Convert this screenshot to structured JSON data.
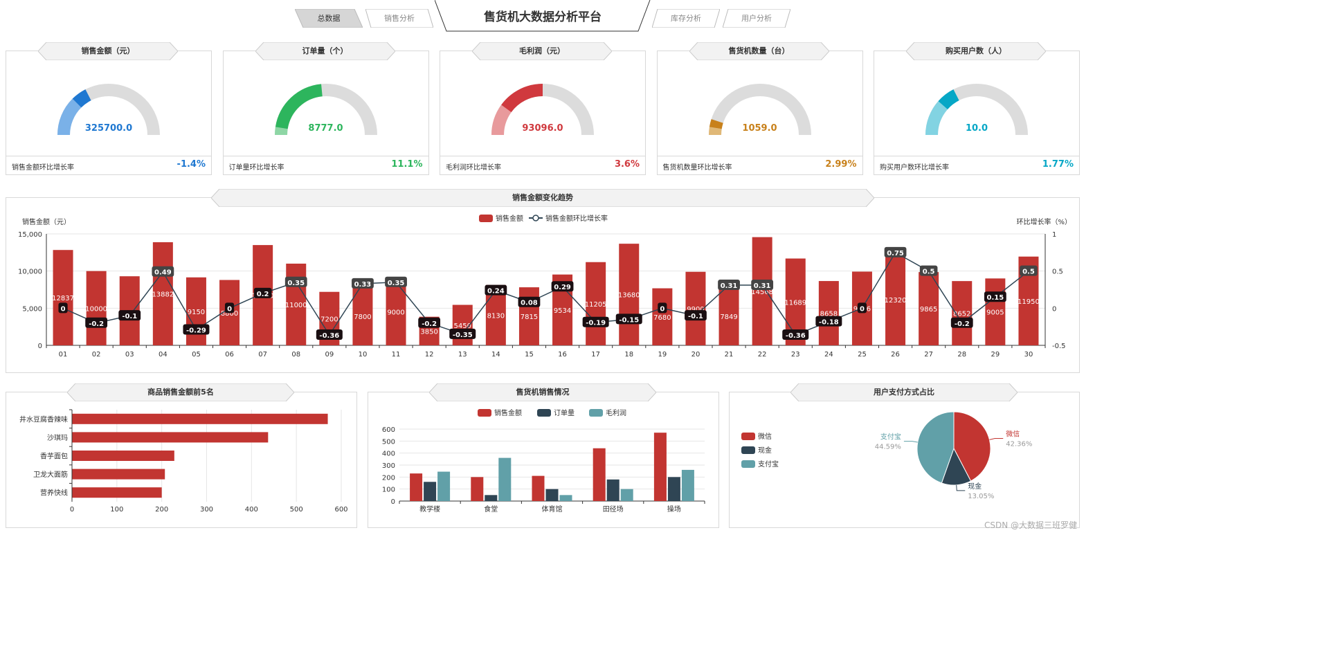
{
  "nav": {
    "tabs": [
      "总数据",
      "销售分析",
      "库存分析",
      "用户分析"
    ],
    "title": "售货机大数据分析平台"
  },
  "colors": {
    "red": "#c23531",
    "dark": "#2f4554",
    "teal": "#61a0a8"
  },
  "kpis": [
    {
      "title": "销售金额（元）",
      "value": "325700.0",
      "foot_label": "销售金额环比增长率",
      "growth": "-1.4%",
      "color": "#1f78d1",
      "light": "#7ab1e8",
      "fraction": 0.35,
      "light_fraction": 0.25
    },
    {
      "title": "订单量（个）",
      "value": "8777.0",
      "foot_label": "订单量环比增长率",
      "growth": "11.1%",
      "color": "#2db55d",
      "light": "#8ed6a5",
      "fraction": 0.47,
      "light_fraction": 0.05
    },
    {
      "title": "毛利润（元）",
      "value": "93096.0",
      "foot_label": "毛利润环比增长率",
      "growth": "3.6%",
      "color": "#d0393e",
      "light": "#e89a9c",
      "fraction": 0.5,
      "light_fraction": 0.2
    },
    {
      "title": "售货机数量（台）",
      "value": "1059.0",
      "foot_label": "售货机数量环比增长率",
      "growth": "2.99%",
      "color": "#c8811b",
      "light": "#e0b877",
      "fraction": 0.1,
      "light_fraction": 0.05
    },
    {
      "title": "购买用户数（人）",
      "value": "10.0",
      "foot_label": "购买用户数环比增长率",
      "growth": "1.77%",
      "color": "#06a7c6",
      "light": "#82d3e2",
      "fraction": 0.35,
      "light_fraction": 0.23
    }
  ],
  "footer_credit": "CSDN @大数据三班罗健",
  "chart_data": [
    {
      "type": "bar",
      "title": "销售金额变化趋势",
      "ylabel": "销售金额（元）",
      "y2label": "环比增长率（%）",
      "legend": [
        "销售金额",
        "销售金额环比增长率"
      ],
      "categories": [
        "01",
        "02",
        "03",
        "04",
        "05",
        "06",
        "07",
        "08",
        "09",
        "10",
        "11",
        "12",
        "13",
        "14",
        "15",
        "16",
        "17",
        "18",
        "19",
        "20",
        "21",
        "22",
        "23",
        "24",
        "25",
        "26",
        "27",
        "28",
        "29",
        "30"
      ],
      "series": [
        {
          "name": "销售金额",
          "type": "bar",
          "values": [
            12837,
            10000,
            9300,
            13882,
            9150,
            8800,
            13500,
            11000,
            7200,
            7800,
            9000,
            3850,
            5450,
            8130,
            7815,
            9534,
            11205,
            13680,
            7680,
            9900,
            7849,
            14568,
            11689,
            8658,
            9926,
            12320,
            9865,
            8652,
            9005,
            11950
          ],
          "labels": [
            "12837",
            "10000",
            "",
            "13882",
            "9150",
            "8800",
            "13500",
            "11000",
            "7200",
            "7800",
            "9000",
            "3850",
            "5450",
            "8130",
            "7815",
            "9534",
            "11205",
            "13680",
            "7680",
            "9900",
            "7849",
            "14568",
            "11689",
            "8658",
            "9926",
            "12320",
            "9865",
            "8652",
            "9005",
            "11950"
          ]
        },
        {
          "name": "销售金额环比增长率",
          "type": "line",
          "values": [
            0,
            -0.2,
            -0.1,
            0.49,
            -0.29,
            0,
            0.2,
            0.35,
            -0.36,
            0.33,
            0.35,
            -0.2,
            -0.35,
            0.24,
            0.08,
            0.29,
            -0.19,
            -0.15,
            0,
            -0.1,
            0.31,
            0.31,
            -0.36,
            -0.18,
            0,
            0.75,
            0.5,
            -0.2,
            0.15,
            0.5
          ],
          "labels": [
            "0",
            "-0.2",
            "-0.1",
            "0.49",
            "-0.29",
            "0",
            "0.2",
            "0.35",
            "-0.36",
            "0.33",
            "0.35",
            "-0.2",
            "-0.35",
            "0.24",
            "0.08",
            "0.29",
            "-0.19",
            "-0.15",
            "0",
            "-0.1",
            "0.31",
            "0.31",
            "-0.36",
            "-0.18",
            "0",
            "0.75",
            "0.5",
            "-0.2",
            "0.15",
            "0.5"
          ]
        }
      ],
      "ylim": [
        0,
        15000
      ],
      "yticks": [
        "0",
        "5,000",
        "10,000",
        "15,000"
      ],
      "y2lim": [
        -0.5,
        1
      ],
      "y2ticks": [
        "-0.5",
        "0",
        "0.5",
        "1"
      ]
    },
    {
      "type": "bar",
      "orientation": "horizontal",
      "title": "商品销售金额前5名",
      "categories": [
        "井水豆腐香辣味",
        "沙琪玛",
        "香芋面包",
        "卫龙大面筋",
        "营养快线"
      ],
      "values": [
        570,
        437,
        228,
        207,
        200
      ],
      "xlim": [
        0,
        600
      ],
      "xticks": [
        "0",
        "100",
        "200",
        "300",
        "400",
        "500",
        "600"
      ]
    },
    {
      "type": "bar",
      "title": "售货机销售情况",
      "categories": [
        "教学楼",
        "食堂",
        "体育馆",
        "田径场",
        "操场"
      ],
      "series": [
        {
          "name": "销售金额",
          "values": [
            230,
            200,
            210,
            440,
            570
          ]
        },
        {
          "name": "订单量",
          "values": [
            160,
            50,
            100,
            180,
            200
          ]
        },
        {
          "name": "毛利润",
          "values": [
            245,
            360,
            50,
            100,
            260
          ]
        }
      ],
      "ylim": [
        0,
        600
      ],
      "yticks": [
        "0",
        "100",
        "200",
        "300",
        "400",
        "500",
        "600"
      ]
    },
    {
      "type": "pie",
      "title": "用户支付方式占比",
      "slices": [
        {
          "name": "微信",
          "value": 42.36,
          "label": "42.36%"
        },
        {
          "name": "现金",
          "value": 13.05,
          "label": "13.05%"
        },
        {
          "name": "支付宝",
          "value": 44.59,
          "label": "44.59%"
        }
      ],
      "legend": [
        "微信",
        "现金",
        "支付宝"
      ]
    }
  ]
}
